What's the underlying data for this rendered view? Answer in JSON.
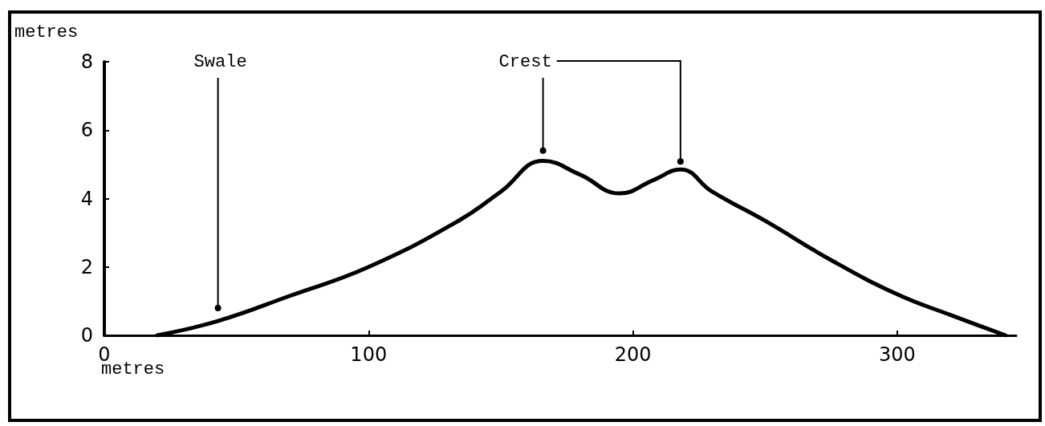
{
  "chart_data": {
    "type": "line",
    "xlabel": "metres",
    "ylabel": "metres",
    "x": [
      20,
      43,
      70,
      100,
      134,
      150,
      166,
      180,
      195,
      208,
      218,
      230,
      250,
      275,
      300,
      320,
      341
    ],
    "series": [
      {
        "color": "#000000",
        "values": [
          0,
          0.42,
          1.15,
          2.0,
          3.35,
          4.2,
          5.1,
          4.7,
          4.15,
          4.55,
          4.85,
          4.2,
          3.35,
          2.2,
          1.2,
          0.6,
          0
        ]
      }
    ],
    "xlim": [
      0,
      345
    ],
    "xticks": [
      0,
      100,
      200,
      300
    ],
    "ylim": [
      0,
      8
    ],
    "yticks": [
      0,
      2,
      4,
      6,
      8
    ],
    "annotations": [
      {
        "text": "Swale",
        "x": 43,
        "y": 0.8
      },
      {
        "text": "Crest",
        "x": 166,
        "y": 5.4
      }
    ],
    "grid": false,
    "marker": "none",
    "line_style": "solid"
  }
}
